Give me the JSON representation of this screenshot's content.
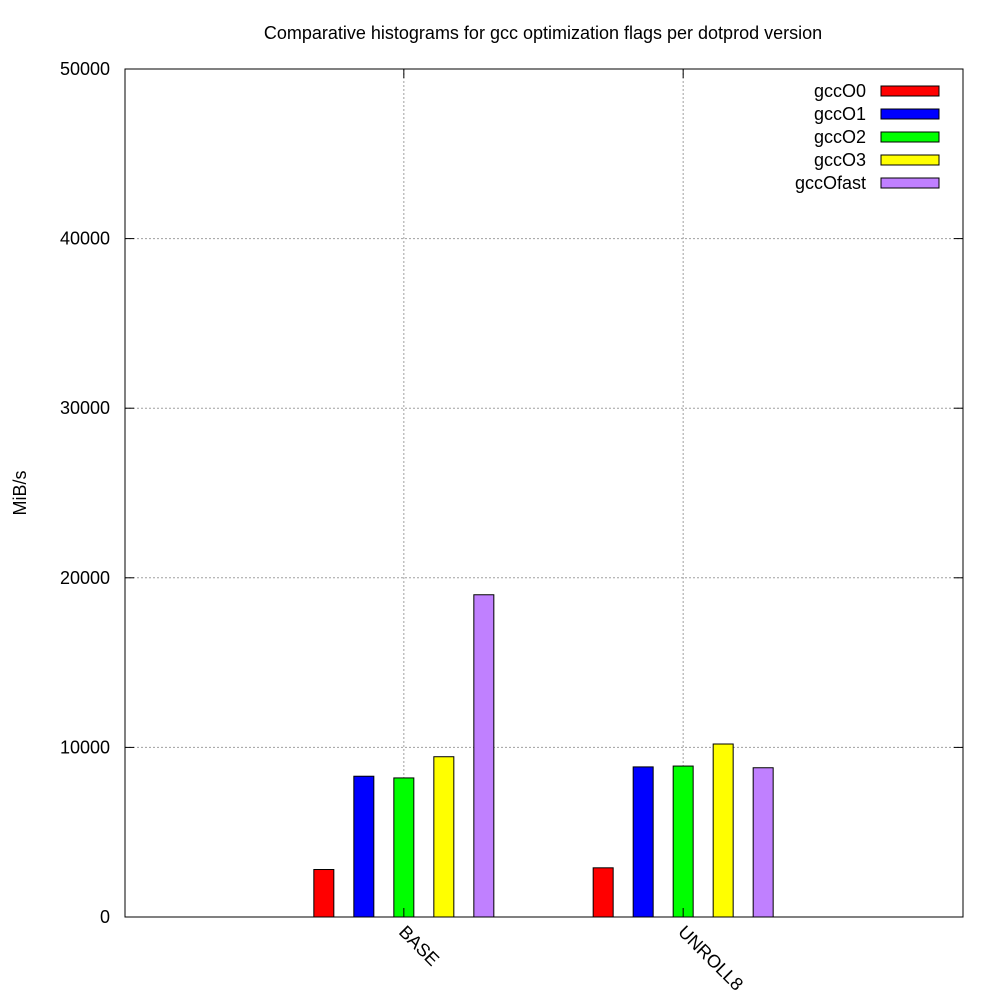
{
  "chart_data": {
    "type": "bar",
    "title": "Comparative histograms for gcc optimization flags per dotprod version",
    "xlabel": "",
    "ylabel": "MiB/s",
    "ylim": [
      0,
      50000
    ],
    "yticks": [
      "0",
      "10000",
      "20000",
      "30000",
      "40000",
      "50000"
    ],
    "categories": [
      "BASE",
      "UNROLL8"
    ],
    "grid": true,
    "legend_position": "top-right",
    "series": [
      {
        "name": "gccO0",
        "color": "#ff0000",
        "values": [
          2800,
          2900
        ]
      },
      {
        "name": "gccO1",
        "color": "#0000ff",
        "values": [
          8300,
          8850
        ]
      },
      {
        "name": "gccO2",
        "color": "#00ff00",
        "values": [
          8200,
          8900
        ]
      },
      {
        "name": "gccO3",
        "color": "#ffff00",
        "values": [
          9450,
          10200
        ]
      },
      {
        "name": "gccOfast",
        "color": "#c080ff",
        "values": [
          19000,
          8800
        ]
      }
    ]
  }
}
